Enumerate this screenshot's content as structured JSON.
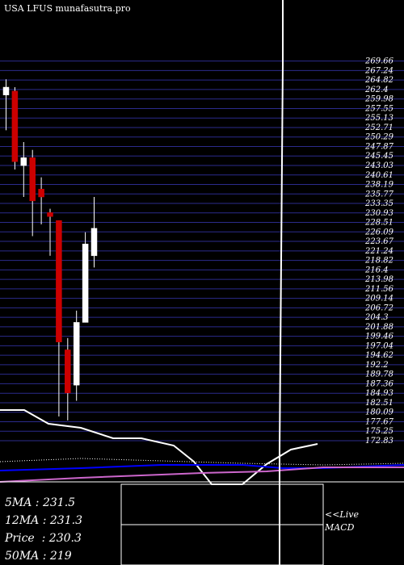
{
  "title": "USA LFUS munafasutra.pro",
  "moving_averages": [
    {
      "label": "5MA",
      "value": "231.5"
    },
    {
      "label": "12MA",
      "value": "231.3"
    },
    {
      "label": "Price",
      "value": "230.3"
    },
    {
      "label": "50MA",
      "value": "219"
    }
  ],
  "live_label": "<<Live",
  "macd_label": "MACD",
  "colors": {
    "background": "#000000",
    "grid": "#2b2b8c",
    "up_candle": "#ffffff",
    "down_candle": "#cc0000",
    "ma_white": "#ffffff",
    "ma_blue": "#0000ff",
    "ma_magenta": "#cc66cc"
  },
  "chart_data": {
    "type": "candlestick",
    "ylim": [
      172,
      270
    ],
    "y_ticks": [
      269.66,
      267.24,
      264.82,
      262.4,
      259.98,
      257.55,
      255.13,
      252.71,
      250.29,
      247.87,
      245.45,
      243.03,
      240.61,
      238.19,
      235.77,
      233.35,
      230.93,
      228.51,
      226.09,
      223.67,
      221.24,
      218.82,
      216.4,
      213.98,
      211.56,
      209.14,
      206.72,
      204.3,
      201.88,
      199.46,
      197.04,
      194.62,
      192.2,
      189.78,
      187.36,
      184.93,
      182.51,
      180.09,
      177.67,
      175.25,
      172.83
    ],
    "candles": [
      {
        "open": 261,
        "high": 265,
        "low": 252,
        "close": 263
      },
      {
        "open": 262,
        "high": 263,
        "low": 242,
        "close": 244
      },
      {
        "open": 243,
        "high": 249,
        "low": 235,
        "close": 245
      },
      {
        "open": 245,
        "high": 247,
        "low": 225,
        "close": 234
      },
      {
        "open": 237,
        "high": 240,
        "low": 228,
        "close": 235
      },
      {
        "open": 231,
        "high": 232,
        "low": 220,
        "close": 230
      },
      {
        "open": 229,
        "high": 229,
        "low": 179,
        "close": 198
      },
      {
        "open": 196,
        "high": 199,
        "low": 178,
        "close": 185
      },
      {
        "open": 187,
        "high": 206,
        "low": 183,
        "close": 203
      },
      {
        "open": 203,
        "high": 226,
        "low": 203,
        "close": 223
      },
      {
        "open": 220,
        "high": 235,
        "low": 217,
        "close": 227
      }
    ]
  }
}
